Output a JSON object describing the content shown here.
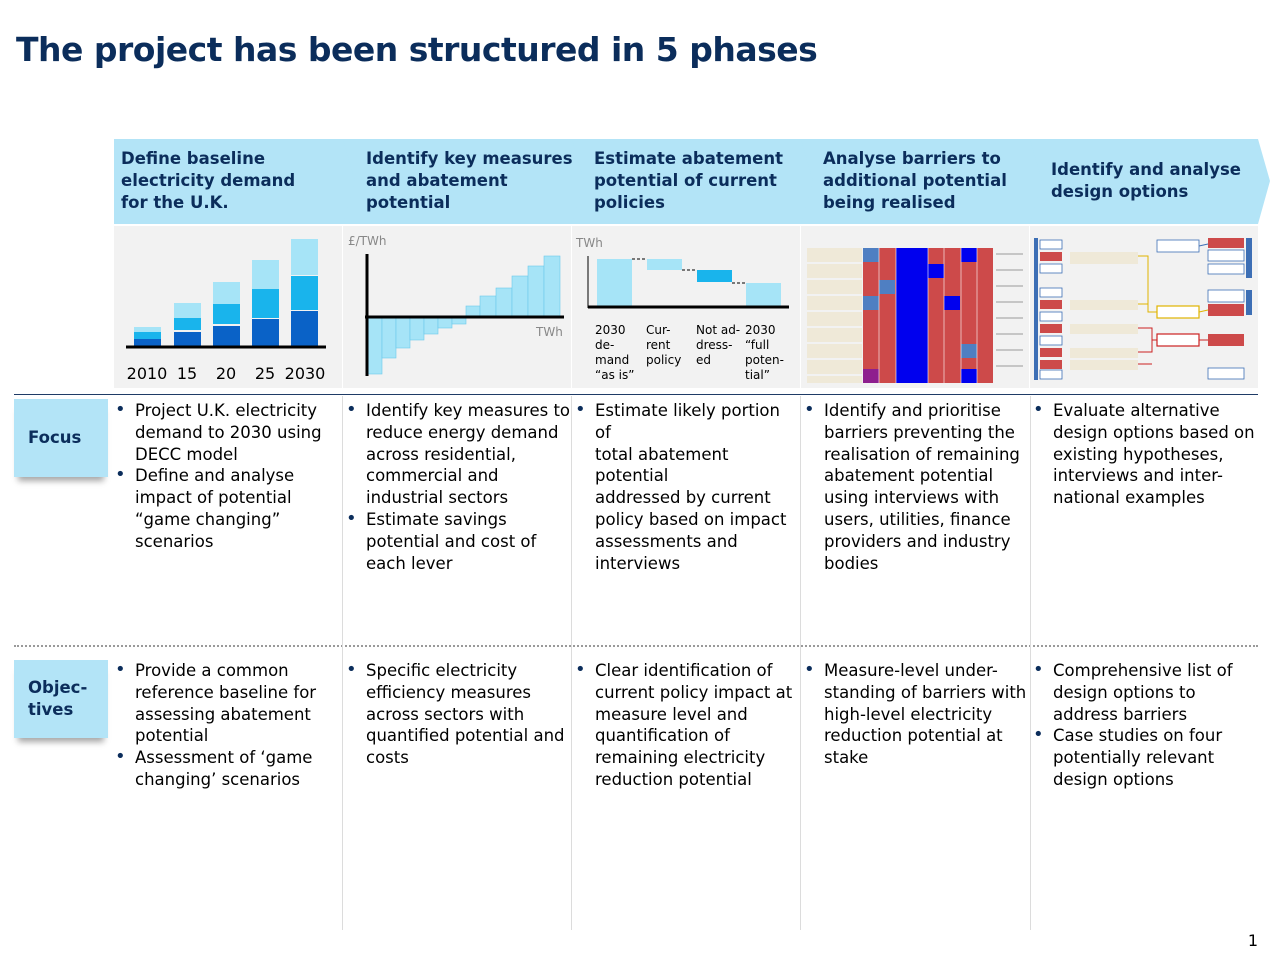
{
  "title": "The project has been structured in 5 phases",
  "colors": {
    "header_blue": "#b3e4f7",
    "navy": "#0b2d5b",
    "light_bar": "#a6e4f7",
    "mid_bar": "#19b4ec",
    "dark_bar": "#0a62c7"
  },
  "phases": [
    {
      "lines": [
        "Define baseline",
        "electricity demand",
        "for the U.K."
      ]
    },
    {
      "lines": [
        "Identify key measures",
        "and abatement",
        "potential"
      ]
    },
    {
      "lines": [
        "Estimate abatement",
        "potential of current",
        "policies"
      ]
    },
    {
      "lines": [
        "Analyse barriers to",
        "additional potential",
        "being realised"
      ]
    },
    {
      "lines": [
        "Identify and analyse",
        "design options"
      ]
    }
  ],
  "visuals": {
    "baseline_chart": {
      "x_labels": [
        "2010",
        "15",
        "20",
        "25",
        "2030"
      ]
    },
    "cost_curve": {
      "ylabel": "£/TWh",
      "xlabel": "TWh"
    },
    "waterfall": {
      "ylabel": "TWh",
      "labels": [
        [
          "2030",
          "de-",
          "mand",
          "“as is”"
        ],
        [
          "Cur-",
          "rent",
          "policy"
        ],
        [
          "Not ad-",
          "dress-",
          "ed"
        ],
        [
          "2030",
          "“full",
          "poten-",
          "tial”"
        ]
      ]
    }
  },
  "rows": {
    "focus_label": [
      "Focus"
    ],
    "objectives_label": [
      "Objec-",
      "tives"
    ]
  },
  "focus": [
    [
      [
        "Project U.K. electricity",
        "demand to 2030 using",
        "DECC model"
      ],
      [
        "Define and analyse",
        "impact of potential",
        "“game changing”",
        "scenarios"
      ]
    ],
    [
      [
        "Identify key measures to",
        "reduce energy demand",
        "across residential,",
        "commercial and",
        "industrial sectors"
      ],
      [
        "Estimate savings",
        "potential and cost of",
        "each lever"
      ]
    ],
    [
      [
        "Estimate likely portion of",
        "total abatement potential",
        "addressed by current",
        "policy based on impact",
        "assessments and",
        "interviews"
      ]
    ],
    [
      [
        "Identify and prioritise",
        "barriers preventing the",
        "realisation of remaining",
        "abatement potential",
        "using interviews with",
        "users, utilities, finance",
        "providers and industry",
        "bodies"
      ]
    ],
    [
      [
        "Evaluate alternative",
        "design options based on",
        "existing hypotheses,",
        "interviews and inter-",
        "national examples"
      ]
    ]
  ],
  "objectives": [
    [
      [
        "Provide a common",
        "reference baseline for",
        "assessing abatement",
        "potential"
      ],
      [
        "Assessment of ‘game",
        "changing’ scenarios"
      ]
    ],
    [
      [
        "Specific electricity",
        "efficiency measures",
        "across sectors with",
        "quantified potential and",
        "costs"
      ]
    ],
    [
      [
        "Clear identification of",
        "current policy impact at",
        "measure level and",
        "quantification of",
        "remaining electricity",
        "reduction potential"
      ]
    ],
    [
      [
        "Measure-level under-",
        "standing of barriers with",
        "high-level electricity",
        "reduction potential at",
        "stake"
      ]
    ],
    [
      [
        "Comprehensive list of",
        "design options to",
        "address barriers"
      ],
      [
        "Case studies on four",
        "potentially relevant",
        "design options"
      ]
    ]
  ],
  "page_number": "1"
}
